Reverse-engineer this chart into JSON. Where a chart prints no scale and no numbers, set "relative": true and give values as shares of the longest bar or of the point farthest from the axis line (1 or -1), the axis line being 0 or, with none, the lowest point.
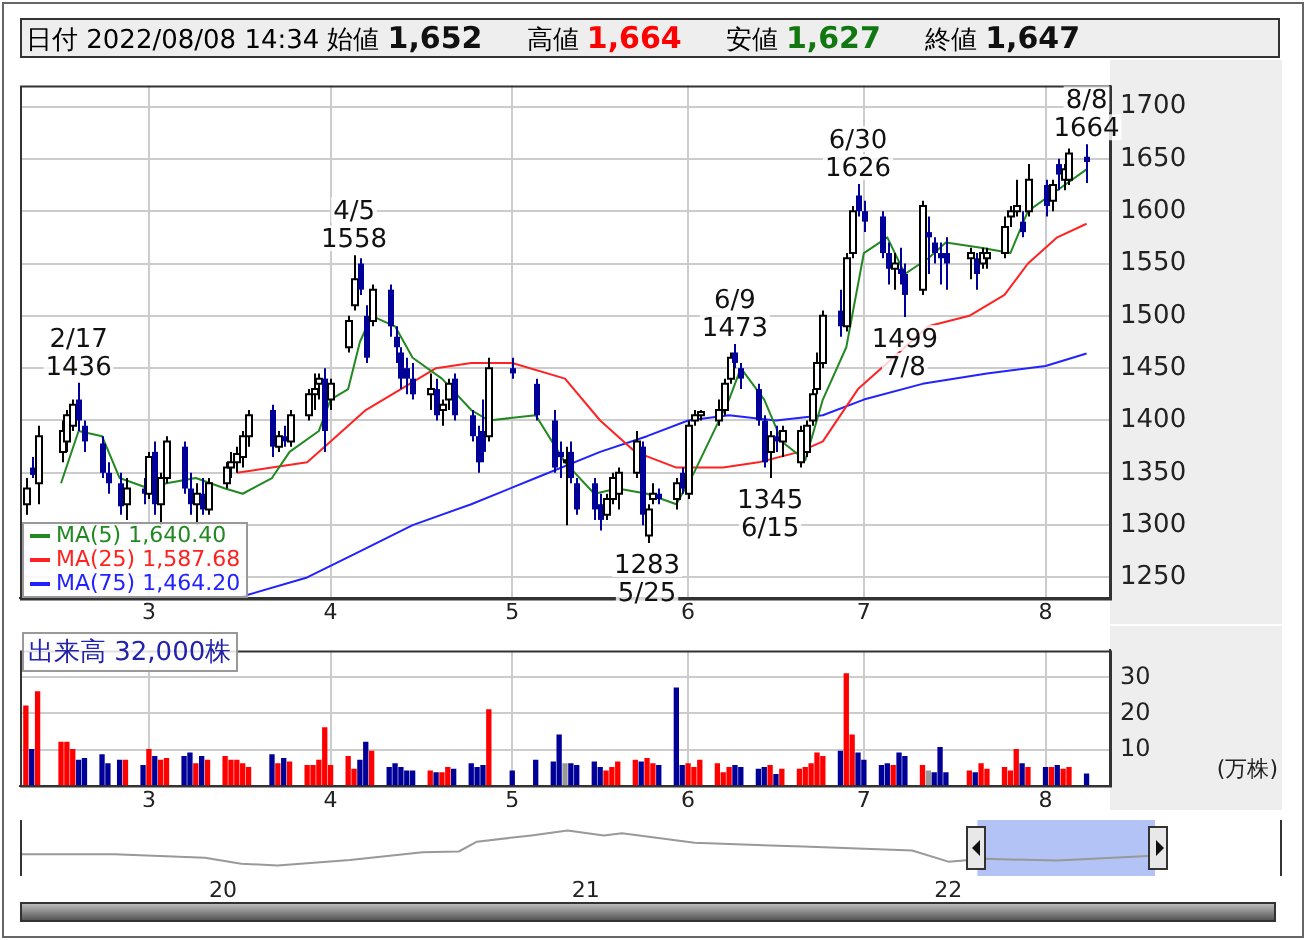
{
  "chart_data": [
    {
      "type": "candlestick",
      "title": "日付 2022/08/08 14:34",
      "x": [
        "2022-02-08",
        "2022-02-09",
        "2022-02-10",
        "2022-02-14",
        "2022-02-15",
        "2022-02-16",
        "2022-02-17",
        "2022-02-18",
        "2022-02-21",
        "2022-02-22",
        "2022-02-24",
        "2022-02-25",
        "2022-02-28",
        "2022-03-01",
        "2022-03-02",
        "2022-03-03",
        "2022-03-04",
        "2022-03-07",
        "2022-03-08",
        "2022-03-09",
        "2022-03-10",
        "2022-03-11",
        "2022-03-14",
        "2022-03-15",
        "2022-03-16",
        "2022-03-17",
        "2022-03-18",
        "2022-03-22",
        "2022-03-23",
        "2022-03-24",
        "2022-03-25",
        "2022-03-28",
        "2022-03-29",
        "2022-03-30",
        "2022-03-31",
        "2022-04-01",
        "2022-04-04",
        "2022-04-05",
        "2022-04-06",
        "2022-04-07",
        "2022-04-08",
        "2022-04-11",
        "2022-04-12",
        "2022-04-13",
        "2022-04-14",
        "2022-04-15",
        "2022-04-18",
        "2022-04-19",
        "2022-04-20",
        "2022-04-21",
        "2022-04-22",
        "2022-04-25",
        "2022-04-26",
        "2022-04-27",
        "2022-04-28",
        "2022-05-02",
        "2022-05-06",
        "2022-05-09",
        "2022-05-10",
        "2022-05-11",
        "2022-05-12",
        "2022-05-13",
        "2022-05-16",
        "2022-05-17",
        "2022-05-18",
        "2022-05-19",
        "2022-05-20",
        "2022-05-23",
        "2022-05-24",
        "2022-05-25",
        "2022-05-26",
        "2022-05-27",
        "2022-05-30",
        "2022-05-31",
        "2022-06-01",
        "2022-06-02",
        "2022-06-03",
        "2022-06-06",
        "2022-06-07",
        "2022-06-08",
        "2022-06-09",
        "2022-06-10",
        "2022-06-13",
        "2022-06-14",
        "2022-06-15",
        "2022-06-16",
        "2022-06-17",
        "2022-06-20",
        "2022-06-21",
        "2022-06-22",
        "2022-06-23",
        "2022-06-24",
        "2022-06-27",
        "2022-06-28",
        "2022-06-29",
        "2022-06-30",
        "2022-07-01",
        "2022-07-04",
        "2022-07-05",
        "2022-07-06",
        "2022-07-07",
        "2022-07-08",
        "2022-07-11",
        "2022-07-12",
        "2022-07-13",
        "2022-07-14",
        "2022-07-15",
        "2022-07-19",
        "2022-07-20",
        "2022-07-21",
        "2022-07-22",
        "2022-07-25",
        "2022-07-26",
        "2022-07-27",
        "2022-07-28",
        "2022-07-29",
        "2022-08-01",
        "2022-08-02",
        "2022-08-03",
        "2022-08-04",
        "2022-08-05",
        "2022-08-08"
      ],
      "ohlc": [
        [
          1320,
          1345,
          1310,
          1335
        ],
        [
          1355,
          1365,
          1345,
          1348
        ],
        [
          1340,
          1395,
          1320,
          1385
        ],
        [
          1370,
          1400,
          1360,
          1390
        ],
        [
          1380,
          1410,
          1370,
          1405
        ],
        [
          1395,
          1420,
          1390,
          1415
        ],
        [
          1420,
          1436,
          1390,
          1400
        ],
        [
          1395,
          1400,
          1370,
          1380
        ],
        [
          1378,
          1385,
          1345,
          1350
        ],
        [
          1350,
          1360,
          1330,
          1340
        ],
        [
          1340,
          1350,
          1310,
          1318
        ],
        [
          1320,
          1345,
          1305,
          1335
        ],
        [
          1335,
          1345,
          1320,
          1330
        ],
        [
          1330,
          1370,
          1325,
          1365
        ],
        [
          1370,
          1380,
          1310,
          1320
        ],
        [
          1320,
          1350,
          1300,
          1345
        ],
        [
          1345,
          1385,
          1340,
          1380
        ],
        [
          1375,
          1380,
          1330,
          1335
        ],
        [
          1335,
          1350,
          1310,
          1320
        ],
        [
          1320,
          1340,
          1300,
          1330
        ],
        [
          1330,
          1345,
          1310,
          1315
        ],
        [
          1315,
          1345,
          1310,
          1340
        ],
        [
          1340,
          1360,
          1335,
          1355
        ],
        [
          1355,
          1370,
          1345,
          1360
        ],
        [
          1360,
          1375,
          1350,
          1368
        ],
        [
          1365,
          1390,
          1355,
          1385
        ],
        [
          1385,
          1410,
          1375,
          1405
        ],
        [
          1410,
          1415,
          1365,
          1375
        ],
        [
          1375,
          1390,
          1370,
          1385
        ],
        [
          1385,
          1395,
          1375,
          1380
        ],
        [
          1380,
          1410,
          1375,
          1405
        ],
        [
          1405,
          1430,
          1400,
          1425
        ],
        [
          1425,
          1445,
          1410,
          1430
        ],
        [
          1435,
          1445,
          1420,
          1440
        ],
        [
          1440,
          1450,
          1370,
          1390
        ],
        [
          1420,
          1440,
          1410,
          1435
        ],
        [
          1470,
          1500,
          1465,
          1495
        ],
        [
          1510,
          1558,
          1505,
          1535
        ],
        [
          1550,
          1555,
          1520,
          1525
        ],
        [
          1500,
          1510,
          1455,
          1460
        ],
        [
          1495,
          1530,
          1490,
          1525
        ],
        [
          1525,
          1530,
          1480,
          1490
        ],
        [
          1480,
          1490,
          1455,
          1470
        ],
        [
          1465,
          1470,
          1430,
          1440
        ],
        [
          1450,
          1460,
          1425,
          1440
        ],
        [
          1440,
          1455,
          1420,
          1425
        ],
        [
          1425,
          1445,
          1410,
          1430
        ],
        [
          1430,
          1440,
          1400,
          1405
        ],
        [
          1410,
          1420,
          1395,
          1415
        ],
        [
          1420,
          1440,
          1410,
          1435
        ],
        [
          1440,
          1445,
          1400,
          1405
        ],
        [
          1405,
          1410,
          1380,
          1385
        ],
        [
          1385,
          1395,
          1350,
          1360
        ],
        [
          1390,
          1420,
          1360,
          1370
        ],
        [
          1385,
          1460,
          1380,
          1450
        ],
        [
          1450,
          1460,
          1440,
          1445
        ],
        [
          1435,
          1440,
          1400,
          1405
        ],
        [
          1400,
          1410,
          1350,
          1355
        ],
        [
          1370,
          1380,
          1345,
          1365
        ],
        [
          1360,
          1375,
          1300,
          1362
        ],
        [
          1370,
          1380,
          1340,
          1345
        ],
        [
          1340,
          1345,
          1310,
          1315
        ],
        [
          1340,
          1345,
          1305,
          1315
        ],
        [
          1320,
          1330,
          1295,
          1305
        ],
        [
          1310,
          1330,
          1305,
          1325
        ],
        [
          1325,
          1350,
          1320,
          1345
        ],
        [
          1330,
          1355,
          1315,
          1350
        ],
        [
          1350,
          1390,
          1345,
          1380
        ],
        [
          1375,
          1380,
          1300,
          1310
        ],
        [
          1290,
          1320,
          1283,
          1315
        ],
        [
          1325,
          1340,
          1320,
          1330
        ],
        [
          1330,
          1335,
          1320,
          1325
        ],
        [
          1325,
          1345,
          1315,
          1340
        ],
        [
          1350,
          1355,
          1330,
          1335
        ],
        [
          1330,
          1400,
          1325,
          1395
        ],
        [
          1400,
          1410,
          1395,
          1405
        ],
        [
          1405,
          1410,
          1400,
          1408
        ],
        [
          1400,
          1420,
          1395,
          1410
        ],
        [
          1410,
          1440,
          1405,
          1435
        ],
        [
          1440,
          1465,
          1435,
          1460
        ],
        [
          1465,
          1473,
          1450,
          1455
        ],
        [
          1450,
          1455,
          1430,
          1440
        ],
        [
          1430,
          1435,
          1395,
          1400
        ],
        [
          1400,
          1405,
          1355,
          1360
        ],
        [
          1370,
          1390,
          1345,
          1385
        ],
        [
          1385,
          1395,
          1370,
          1380
        ],
        [
          1380,
          1395,
          1365,
          1390
        ],
        [
          1360,
          1395,
          1355,
          1390
        ],
        [
          1370,
          1400,
          1365,
          1395
        ],
        [
          1400,
          1430,
          1395,
          1425
        ],
        [
          1430,
          1465,
          1425,
          1455
        ],
        [
          1455,
          1505,
          1450,
          1500
        ],
        [
          1505,
          1525,
          1480,
          1490
        ],
        [
          1490,
          1560,
          1485,
          1555
        ],
        [
          1560,
          1605,
          1555,
          1600
        ],
        [
          1615,
          1626,
          1595,
          1600
        ],
        [
          1600,
          1610,
          1580,
          1590
        ],
        [
          1595,
          1600,
          1555,
          1560
        ],
        [
          1560,
          1570,
          1530,
          1545
        ],
        [
          1545,
          1560,
          1525,
          1550
        ],
        [
          1545,
          1565,
          1530,
          1540
        ],
        [
          1540,
          1550,
          1499,
          1520
        ],
        [
          1525,
          1610,
          1520,
          1605
        ],
        [
          1580,
          1595,
          1540,
          1575
        ],
        [
          1570,
          1575,
          1550,
          1560
        ],
        [
          1560,
          1570,
          1530,
          1555
        ],
        [
          1560,
          1575,
          1525,
          1550
        ],
        [
          1555,
          1565,
          1535,
          1560
        ],
        [
          1555,
          1560,
          1525,
          1540
        ],
        [
          1550,
          1565,
          1545,
          1560
        ],
        [
          1555,
          1565,
          1545,
          1560
        ],
        [
          1560,
          1595,
          1555,
          1585
        ],
        [
          1595,
          1605,
          1585,
          1600
        ],
        [
          1600,
          1630,
          1595,
          1605
        ],
        [
          1590,
          1600,
          1575,
          1580
        ],
        [
          1600,
          1645,
          1595,
          1630
        ],
        [
          1625,
          1630,
          1595,
          1605
        ],
        [
          1610,
          1630,
          1600,
          1625
        ],
        [
          1645,
          1650,
          1620,
          1635
        ],
        [
          1630,
          1645,
          1620,
          1640
        ],
        [
          1630,
          1660,
          1625,
          1655
        ],
        [
          1652,
          1664,
          1627,
          1647
        ]
      ],
      "series": [
        {
          "name": "MA(5) 1,640.40",
          "type": "line",
          "color": "#228822",
          "x": [
            "2022-02-14",
            "2022-02-17",
            "2022-02-21",
            "2022-02-24",
            "2022-03-01",
            "2022-03-04",
            "2022-03-09",
            "2022-03-14",
            "2022-03-17",
            "2022-03-22",
            "2022-03-25",
            "2022-03-30",
            "2022-04-01",
            "2022-04-04",
            "2022-04-06",
            "2022-04-08",
            "2022-04-12",
            "2022-04-15",
            "2022-04-20",
            "2022-04-25",
            "2022-04-28",
            "2022-05-06",
            "2022-05-11",
            "2022-05-16",
            "2022-05-20",
            "2022-05-25",
            "2022-05-30",
            "2022-06-02",
            "2022-06-08",
            "2022-06-10",
            "2022-06-14",
            "2022-06-17",
            "2022-06-21",
            "2022-06-24",
            "2022-06-28",
            "2022-07-01",
            "2022-07-05",
            "2022-07-08",
            "2022-07-12",
            "2022-07-15",
            "2022-07-21",
            "2022-07-26",
            "2022-07-29",
            "2022-08-03",
            "2022-08-08"
          ],
          "values": [
            1340,
            1390,
            1385,
            1345,
            1335,
            1340,
            1345,
            1335,
            1330,
            1345,
            1370,
            1390,
            1420,
            1430,
            1475,
            1500,
            1490,
            1460,
            1440,
            1410,
            1400,
            1405,
            1360,
            1330,
            1335,
            1330,
            1320,
            1350,
            1420,
            1450,
            1420,
            1380,
            1362,
            1420,
            1470,
            1560,
            1575,
            1540,
            1555,
            1570,
            1565,
            1560,
            1600,
            1620,
            1640
          ]
        },
        {
          "name": "MA(25) 1,587.68",
          "type": "line",
          "color": "#ff2222",
          "x": [
            "2022-03-16",
            "2022-03-22",
            "2022-03-28",
            "2022-04-01",
            "2022-04-07",
            "2022-04-13",
            "2022-04-19",
            "2022-04-25",
            "2022-05-02",
            "2022-05-11",
            "2022-05-17",
            "2022-05-23",
            "2022-05-30",
            "2022-06-07",
            "2022-06-13",
            "2022-06-20",
            "2022-06-24",
            "2022-06-30",
            "2022-07-06",
            "2022-07-12",
            "2022-07-19",
            "2022-07-25",
            "2022-07-29",
            "2022-08-03",
            "2022-08-08"
          ],
          "values": [
            1350,
            1355,
            1360,
            1380,
            1410,
            1430,
            1450,
            1455,
            1455,
            1440,
            1400,
            1370,
            1355,
            1355,
            1360,
            1370,
            1380,
            1430,
            1460,
            1490,
            1500,
            1520,
            1550,
            1575,
            1588
          ]
        },
        {
          "name": "MA(75) 1,464.20",
          "type": "line",
          "color": "#2222ff",
          "x": [
            "2022-03-17",
            "2022-03-28",
            "2022-04-06",
            "2022-04-15",
            "2022-04-25",
            "2022-05-06",
            "2022-05-17",
            "2022-05-25",
            "2022-06-01",
            "2022-06-08",
            "2022-06-16",
            "2022-06-24",
            "2022-07-01",
            "2022-07-11",
            "2022-07-22",
            "2022-08-01",
            "2022-08-08"
          ],
          "values": [
            1232,
            1250,
            1275,
            1300,
            1320,
            1345,
            1370,
            1385,
            1400,
            1405,
            1400,
            1405,
            1420,
            1435,
            1445,
            1452,
            1464
          ]
        }
      ],
      "annotations": [
        "始値 1,652",
        "高値 1,664",
        "安値 1,627",
        "終値 1,647",
        {
          "text": "2/17\n1436",
          "x": "2022-02-17",
          "y": 1436
        },
        {
          "text": "4/5\n1558",
          "x": "2022-04-05",
          "y": 1558
        },
        {
          "text": "1283\n5/25",
          "x": "2022-05-25",
          "y": 1283
        },
        {
          "text": "6/9\n1473",
          "x": "2022-06-09",
          "y": 1473
        },
        {
          "text": "1345\n6/15",
          "x": "2022-06-15",
          "y": 1345
        },
        {
          "text": "6/30\n1626",
          "x": "2022-06-30",
          "y": 1626
        },
        {
          "text": "1499\n7/8",
          "x": "2022-07-08",
          "y": 1499
        },
        {
          "text": "8/8\n1664",
          "x": "2022-08-08",
          "y": 1664
        }
      ],
      "xlim": [
        "2022-02-07",
        "2022-08-12"
      ],
      "xticks": [
        {
          "value": "2022-03-01",
          "label": "3"
        },
        {
          "value": "2022-04-01",
          "label": "4"
        },
        {
          "value": "2022-05-02",
          "label": "5"
        },
        {
          "value": "2022-06-01",
          "label": "6"
        },
        {
          "value": "2022-07-01",
          "label": "7"
        },
        {
          "value": "2022-08-01",
          "label": "8"
        }
      ],
      "ylim": [
        1230,
        1720
      ],
      "yticks": [
        1250,
        1300,
        1350,
        1400,
        1450,
        1500,
        1550,
        1600,
        1650,
        1700
      ],
      "grid": true,
      "legend": "bottom left"
    },
    {
      "type": "bar",
      "ylabel": "(万株)",
      "annotations": [
        "出来高 32,000株"
      ],
      "x": [
        "2022-02-08",
        "2022-02-09",
        "2022-02-10",
        "2022-02-14",
        "2022-02-15",
        "2022-02-16",
        "2022-02-17",
        "2022-02-18",
        "2022-02-21",
        "2022-02-22",
        "2022-02-24",
        "2022-02-25",
        "2022-02-28",
        "2022-03-01",
        "2022-03-02",
        "2022-03-03",
        "2022-03-04",
        "2022-03-07",
        "2022-03-08",
        "2022-03-09",
        "2022-03-10",
        "2022-03-11",
        "2022-03-14",
        "2022-03-15",
        "2022-03-16",
        "2022-03-17",
        "2022-03-18",
        "2022-03-22",
        "2022-03-23",
        "2022-03-24",
        "2022-03-25",
        "2022-03-28",
        "2022-03-29",
        "2022-03-30",
        "2022-03-31",
        "2022-04-01",
        "2022-04-04",
        "2022-04-05",
        "2022-04-06",
        "2022-04-07",
        "2022-04-08",
        "2022-04-11",
        "2022-04-12",
        "2022-04-13",
        "2022-04-14",
        "2022-04-15",
        "2022-04-18",
        "2022-04-19",
        "2022-04-20",
        "2022-04-21",
        "2022-04-22",
        "2022-04-25",
        "2022-04-26",
        "2022-04-27",
        "2022-04-28",
        "2022-05-02",
        "2022-05-06",
        "2022-05-09",
        "2022-05-10",
        "2022-05-11",
        "2022-05-12",
        "2022-05-13",
        "2022-05-16",
        "2022-05-17",
        "2022-05-18",
        "2022-05-19",
        "2022-05-20",
        "2022-05-23",
        "2022-05-24",
        "2022-05-25",
        "2022-05-26",
        "2022-05-27",
        "2022-05-30",
        "2022-05-31",
        "2022-06-01",
        "2022-06-02",
        "2022-06-03",
        "2022-06-06",
        "2022-06-07",
        "2022-06-08",
        "2022-06-09",
        "2022-06-10",
        "2022-06-13",
        "2022-06-14",
        "2022-06-15",
        "2022-06-16",
        "2022-06-17",
        "2022-06-20",
        "2022-06-21",
        "2022-06-22",
        "2022-06-23",
        "2022-06-24",
        "2022-06-27",
        "2022-06-28",
        "2022-06-29",
        "2022-06-30",
        "2022-07-01",
        "2022-07-04",
        "2022-07-05",
        "2022-07-06",
        "2022-07-07",
        "2022-07-08",
        "2022-07-11",
        "2022-07-12",
        "2022-07-13",
        "2022-07-14",
        "2022-07-15",
        "2022-07-19",
        "2022-07-20",
        "2022-07-21",
        "2022-07-22",
        "2022-07-25",
        "2022-07-26",
        "2022-07-27",
        "2022-07-28",
        "2022-07-29",
        "2022-08-01",
        "2022-08-02",
        "2022-08-03",
        "2022-08-04",
        "2022-08-05",
        "2022-08-08"
      ],
      "values": [
        22,
        10,
        26,
        12,
        12,
        10,
        7,
        7.5,
        8.5,
        6,
        7,
        7,
        5.5,
        10,
        8,
        7,
        7.5,
        8,
        9,
        6,
        8,
        7,
        8,
        7,
        7,
        6,
        5,
        8.5,
        6,
        7.5,
        6.5,
        5.5,
        5.5,
        7,
        16,
        5.5,
        8,
        4.5,
        7,
        12,
        9.5,
        5,
        6,
        5,
        4,
        4,
        4,
        3.5,
        3.5,
        5,
        4.5,
        6,
        5,
        5.5,
        21,
        4,
        7,
        6.5,
        14,
        6,
        6,
        5.5,
        6.5,
        5,
        4,
        5,
        6.5,
        7,
        6.5,
        7.5,
        6,
        5.5,
        27,
        5.5,
        6,
        5,
        7,
        6,
        3.5,
        5,
        5.5,
        5,
        4.5,
        5,
        5.5,
        3,
        4.5,
        4.5,
        5,
        6,
        9,
        8,
        9.5,
        31,
        14,
        9,
        7,
        5.5,
        6,
        5.5,
        9,
        8,
        5.5,
        4,
        3.5,
        10.5,
        3.5,
        4,
        3.5,
        6,
        4.5,
        5,
        4,
        10,
        6,
        5,
        5,
        5,
        5.5,
        4.5,
        5,
        3.2
      ],
      "colors": [
        "#ff0000",
        "#000099",
        "#ff0000",
        "#ff0000",
        "#ff0000",
        "#ff0000",
        "#000099",
        "#000099",
        "#000099",
        "#000099",
        "#000099",
        "#ff0000",
        "#000099",
        "#ff0000",
        "#000099",
        "#ff0000",
        "#ff0000",
        "#000099",
        "#000099",
        "#ff0000",
        "#000099",
        "#ff0000",
        "#ff0000",
        "#ff0000",
        "#ff0000",
        "#ff0000",
        "#ff0000",
        "#000099",
        "#ff0000",
        "#000099",
        "#ff0000",
        "#ff0000",
        "#ff0000",
        "#ff0000",
        "#ff0000",
        "#ff0000",
        "#ff0000",
        "#ff0000",
        "#000099",
        "#000099",
        "#ff0000",
        "#000099",
        "#000099",
        "#000099",
        "#000099",
        "#000099",
        "#ff0000",
        "#000099",
        "#ff0000",
        "#ff0000",
        "#000099",
        "#000099",
        "#000099",
        "#000099",
        "#ff0000",
        "#000099",
        "#000099",
        "#000099",
        "#000099",
        "#999999",
        "#000099",
        "#000099",
        "#000099",
        "#000099",
        "#ff0000",
        "#ff0000",
        "#ff0000",
        "#ff0000",
        "#000099",
        "#ff0000",
        "#ff0000",
        "#000099",
        "#000099",
        "#000099",
        "#ff0000",
        "#ff0000",
        "#ff0000",
        "#ff0000",
        "#ff0000",
        "#ff0000",
        "#000099",
        "#000099",
        "#000099",
        "#000099",
        "#ff0000",
        "#000099",
        "#ff0000",
        "#ff0000",
        "#ff0000",
        "#ff0000",
        "#ff0000",
        "#ff0000",
        "#000099",
        "#ff0000",
        "#ff0000",
        "#000099",
        "#000099",
        "#000099",
        "#000099",
        "#ff0000",
        "#000099",
        "#000099",
        "#ff0000",
        "#999999",
        "#000099",
        "#000099",
        "#000099",
        "#ff0000",
        "#000099",
        "#ff0000",
        "#ff0000",
        "#ff0000",
        "#ff0000",
        "#ff0000",
        "#000099",
        "#ff0000",
        "#000099",
        "#ff0000",
        "#000099",
        "#ff0000",
        "#ff0000",
        "#000099"
      ],
      "xlim": [
        "2022-02-07",
        "2022-08-12"
      ],
      "xticks": [
        {
          "value": "2022-03-01",
          "label": "3"
        },
        {
          "value": "2022-04-01",
          "label": "4"
        },
        {
          "value": "2022-05-02",
          "label": "5"
        },
        {
          "value": "2022-06-01",
          "label": "6"
        },
        {
          "value": "2022-07-01",
          "label": "7"
        },
        {
          "value": "2022-08-01",
          "label": "8"
        }
      ],
      "ylim": [
        0,
        37.5
      ],
      "yticks": [
        10,
        20,
        30
      ],
      "grid": true
    },
    {
      "type": "line",
      "relative": true,
      "x": [
        2019.44,
        2019.7,
        2019.95,
        2020.05,
        2020.15,
        2020.35,
        2020.55,
        2020.65,
        2020.7,
        2020.85,
        2020.95,
        2021.05,
        2021.1,
        2021.3,
        2021.6,
        2021.9,
        2022.0,
        2022.1,
        2022.3,
        2022.55
      ],
      "series": [
        {
          "color": "#999999",
          "values": [
            0.32,
            0.32,
            0.22,
            0.05,
            0,
            0.16,
            0.38,
            0.4,
            0.68,
            0.86,
            1,
            0.86,
            0.92,
            0.65,
            0.54,
            0.43,
            0.11,
            0.19,
            0.14,
            0.27
          ]
        }
      ],
      "xlim": [
        2019.44,
        2022.92
      ],
      "xticks": [
        {
          "value": 2020,
          "label": "20"
        },
        {
          "value": 2021,
          "label": "21"
        },
        {
          "value": 2022,
          "label": "22"
        }
      ],
      "bands": [
        {
          "axis": "x",
          "from": 2022.08,
          "to": 2022.57,
          "color": "#b3c3f5"
        }
      ]
    }
  ]
}
